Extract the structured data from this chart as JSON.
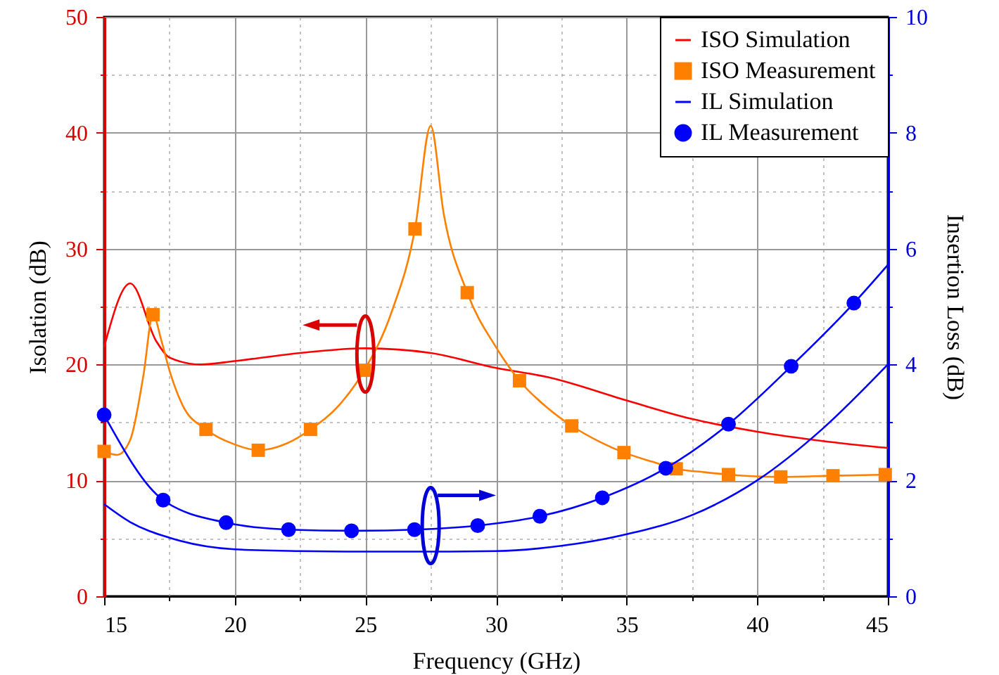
{
  "chart_data": {
    "type": "line",
    "xlabel": "Frequency (GHz)",
    "ylabel": "Isolation (dB)",
    "y2label": "Insertion Loss (dB)",
    "xlim": [
      15,
      45
    ],
    "xticks": [
      15,
      {
        "value": 17.5,
        "label": null
      },
      20,
      {
        "value": 22.5,
        "label": null
      },
      25,
      {
        "value": 27.5,
        "label": null
      },
      30,
      {
        "value": 32.5,
        "label": null
      },
      35,
      {
        "value": 37.5,
        "label": null
      },
      40,
      {
        "value": 42.5,
        "label": null
      },
      45
    ],
    "ylim": [
      0,
      50
    ],
    "yticks": [
      0,
      {
        "value": 5,
        "label": null
      },
      10,
      {
        "value": 15,
        "label": null
      },
      20,
      {
        "value": 25,
        "label": null
      },
      30,
      {
        "value": 35,
        "label": null
      },
      40,
      {
        "value": 45,
        "label": null
      },
      50
    ],
    "y2lim": [
      0,
      10
    ],
    "y2ticks": [
      0,
      {
        "value": 1,
        "label": null
      },
      2,
      {
        "value": 3,
        "label": null
      },
      4,
      {
        "value": 5,
        "label": null
      },
      6,
      {
        "value": 7,
        "label": null
      },
      8,
      {
        "value": 9,
        "label": null
      },
      10
    ],
    "grid": true,
    "legend": "top right",
    "series": [
      {
        "name": "ISO Simulation",
        "color": "#ff0000",
        "x": [
          15,
          16,
          17,
          17.5,
          18.7,
          20,
          22.5,
          25,
          27.5,
          30,
          32,
          35,
          37.5,
          40,
          42.5,
          45
        ],
        "values": [
          21.5,
          27.0,
          22.0,
          20.6,
          20.0,
          20.3,
          21.0,
          21.4,
          21.0,
          19.7,
          18.9,
          16.9,
          15.3,
          14.2,
          13.4,
          12.8
        ]
      },
      {
        "color": "#ff8000",
        "x": [
          15,
          15.5,
          16,
          16.5,
          16.87,
          17.2,
          17.5,
          18,
          18.9,
          20,
          20.9,
          22,
          22.9,
          24,
          24.96,
          26,
          26.9,
          27.5,
          28,
          28.9,
          30,
          30.9,
          32,
          32.9,
          34,
          34.9,
          36,
          36.9,
          38,
          38.9,
          40.9,
          42.9,
          45
        ],
        "values": [
          12.5,
          12.2,
          13.5,
          19,
          24.3,
          22,
          19.5,
          16.5,
          14.4,
          13.1,
          12.6,
          13.2,
          14.4,
          16.5,
          19.5,
          24.5,
          31.7,
          40.6,
          33,
          26.2,
          21.5,
          18.6,
          16.2,
          14.7,
          13.3,
          12.4,
          11.6,
          11.0,
          10.7,
          10.5,
          10.3,
          10.4,
          10.5
        ]
      },
      {
        "name": "ISO Measurement",
        "type": "scatter",
        "color": "#ff8000",
        "marker": "square",
        "x": [
          15,
          16.87,
          18.9,
          20.9,
          22.9,
          24.96,
          26.9,
          28.9,
          30.9,
          32.9,
          34.9,
          36.9,
          38.9,
          40.9,
          42.9,
          44.9
        ],
        "values": [
          12.5,
          24.3,
          14.4,
          12.6,
          14.4,
          19.5,
          31.7,
          26.2,
          18.6,
          14.7,
          12.4,
          11.0,
          10.5,
          10.3,
          10.4,
          10.5
        ]
      },
      {
        "name": "IL Simulation",
        "axis": "y2",
        "color": "#0000ff",
        "x": [
          15,
          16,
          17.5,
          20,
          22.5,
          25,
          27.5,
          30,
          32.5,
          35,
          37.5,
          40,
          42.5,
          45
        ],
        "values": [
          1.59,
          1.28,
          1.01,
          0.81,
          0.78,
          0.77,
          0.77,
          0.78,
          0.87,
          1.07,
          1.4,
          2.0,
          2.89,
          4.0
        ]
      },
      {
        "axis": "y2",
        "color": "#0000ff",
        "x": [
          15,
          17.26,
          19.67,
          22.06,
          24.47,
          26.88,
          29.3,
          31.68,
          34.07,
          36.5,
          38.9,
          41.3,
          43.7,
          45
        ],
        "values": [
          3.13,
          1.66,
          1.27,
          1.15,
          1.13,
          1.15,
          1.22,
          1.38,
          1.7,
          2.21,
          2.97,
          3.97,
          5.06,
          5.72
        ]
      },
      {
        "name": "IL Measurement",
        "type": "scatter",
        "axis": "y2",
        "color": "#0000ff",
        "marker": "circle",
        "x": [
          15,
          17.26,
          19.67,
          22.06,
          24.47,
          26.88,
          29.3,
          31.68,
          34.07,
          36.5,
          38.9,
          41.3,
          43.7
        ],
        "values": [
          3.13,
          1.66,
          1.27,
          1.15,
          1.13,
          1.15,
          1.22,
          1.38,
          1.7,
          2.21,
          2.97,
          3.97,
          5.06
        ]
      }
    ]
  }
}
